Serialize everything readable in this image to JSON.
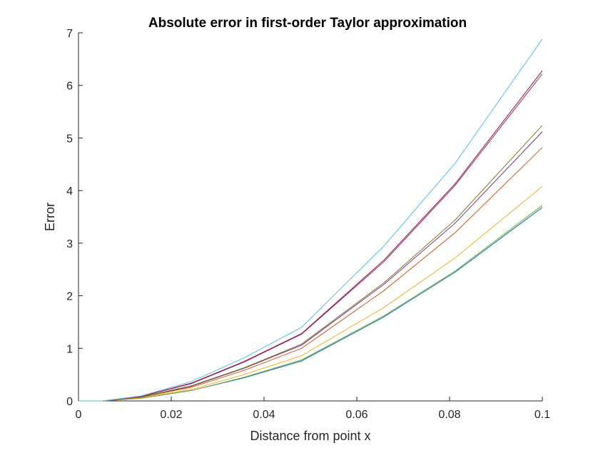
{
  "chart_data": {
    "type": "line",
    "title": "Absolute error in first-order Taylor approximation",
    "xlabel": "Distance from point x",
    "ylabel": "Error",
    "xlim": [
      0,
      0.1
    ],
    "ylim": [
      0,
      7
    ],
    "xticks": [
      0,
      0.02,
      0.04,
      0.06,
      0.08,
      0.1
    ],
    "xtick_labels": [
      "0",
      "0.02",
      "0.04",
      "0.06",
      "0.08",
      "0.1"
    ],
    "yticks": [
      0,
      1,
      2,
      3,
      4,
      5,
      6,
      7
    ],
    "ytick_labels": [
      "0",
      "1",
      "2",
      "3",
      "4",
      "5",
      "6",
      "7"
    ],
    "grid": false,
    "x": [
      0,
      0.0052,
      0.0135,
      0.0244,
      0.0357,
      0.0481,
      0.0659,
      0.0812,
      0.1
    ],
    "series": [
      {
        "color": "#0072BD",
        "values": [
          0,
          0,
          0.05,
          0.2,
          0.44,
          0.76,
          1.6,
          2.45,
          3.68
        ]
      },
      {
        "color": "#77AC30",
        "values": [
          0,
          0,
          0.05,
          0.2,
          0.45,
          0.78,
          1.62,
          2.47,
          3.72
        ]
      },
      {
        "color": "#EDB120",
        "values": [
          0,
          0,
          0.06,
          0.22,
          0.5,
          0.86,
          1.78,
          2.72,
          4.08
        ]
      },
      {
        "color": "#D95319",
        "values": [
          0,
          0,
          0.07,
          0.26,
          0.58,
          1.0,
          2.1,
          3.2,
          4.82
        ]
      },
      {
        "color": "#7E2F8E",
        "values": [
          0,
          0,
          0.07,
          0.28,
          0.62,
          1.06,
          2.22,
          3.38,
          5.12
        ]
      },
      {
        "color": "#7a7a1a",
        "values": [
          0,
          0,
          0.075,
          0.29,
          0.63,
          1.08,
          2.25,
          3.44,
          5.24
        ]
      },
      {
        "color": "#7E2F8E",
        "values": [
          0,
          0,
          0.085,
          0.33,
          0.74,
          1.27,
          2.65,
          4.1,
          6.22
        ]
      },
      {
        "color": "#A2142F",
        "values": [
          0,
          0,
          0.086,
          0.34,
          0.75,
          1.28,
          2.68,
          4.13,
          6.28
        ]
      },
      {
        "color": "#4DBEEE",
        "values": [
          0,
          0,
          0.095,
          0.37,
          0.82,
          1.4,
          2.95,
          4.52,
          6.88
        ]
      }
    ]
  }
}
